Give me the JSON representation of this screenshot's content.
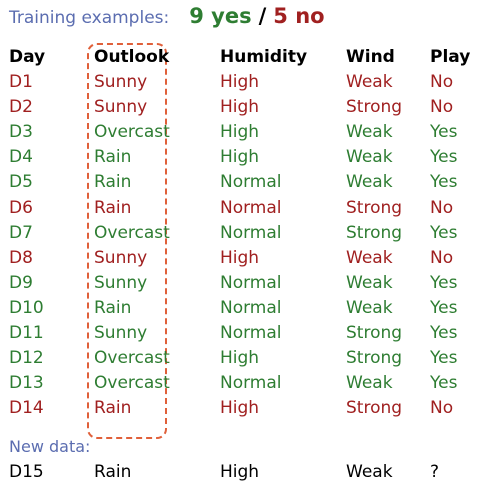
{
  "header": {
    "label": "Training examples:",
    "yes_text": "9 yes",
    "slash": "/",
    "no_text": "5 no"
  },
  "columns": [
    "Day",
    "Outlook",
    "Humidity",
    "Wind",
    "Play"
  ],
  "rows": [
    {
      "day": "D1",
      "outlook": "Sunny",
      "humidity": "High",
      "wind": "Weak",
      "play": "No"
    },
    {
      "day": "D2",
      "outlook": "Sunny",
      "humidity": "High",
      "wind": "Strong",
      "play": "No"
    },
    {
      "day": "D3",
      "outlook": "Overcast",
      "humidity": "High",
      "wind": "Weak",
      "play": "Yes"
    },
    {
      "day": "D4",
      "outlook": "Rain",
      "humidity": "High",
      "wind": "Weak",
      "play": "Yes"
    },
    {
      "day": "D5",
      "outlook": "Rain",
      "humidity": "Normal",
      "wind": "Weak",
      "play": "Yes"
    },
    {
      "day": "D6",
      "outlook": "Rain",
      "humidity": "Normal",
      "wind": "Strong",
      "play": "No"
    },
    {
      "day": "D7",
      "outlook": "Overcast",
      "humidity": "Normal",
      "wind": "Strong",
      "play": "Yes"
    },
    {
      "day": "D8",
      "outlook": "Sunny",
      "humidity": "High",
      "wind": "Weak",
      "play": "No"
    },
    {
      "day": "D9",
      "outlook": "Sunny",
      "humidity": "Normal",
      "wind": "Weak",
      "play": "Yes"
    },
    {
      "day": "D10",
      "outlook": "Rain",
      "humidity": "Normal",
      "wind": "Weak",
      "play": "Yes"
    },
    {
      "day": "D11",
      "outlook": "Sunny",
      "humidity": "Normal",
      "wind": "Strong",
      "play": "Yes"
    },
    {
      "day": "D12",
      "outlook": "Overcast",
      "humidity": "High",
      "wind": "Strong",
      "play": "Yes"
    },
    {
      "day": "D13",
      "outlook": "Overcast",
      "humidity": "Normal",
      "wind": "Weak",
      "play": "Yes"
    },
    {
      "day": "D14",
      "outlook": "Rain",
      "humidity": "High",
      "wind": "Strong",
      "play": "No"
    }
  ],
  "new_data": {
    "label": "New data:",
    "day": "D15",
    "outlook": "Rain",
    "humidity": "High",
    "wind": "Weak",
    "play": "?"
  },
  "colors": {
    "yes": "#2e7d32",
    "no": "#a02020",
    "label": "#5b6db0",
    "highlight": "#e0603a"
  }
}
